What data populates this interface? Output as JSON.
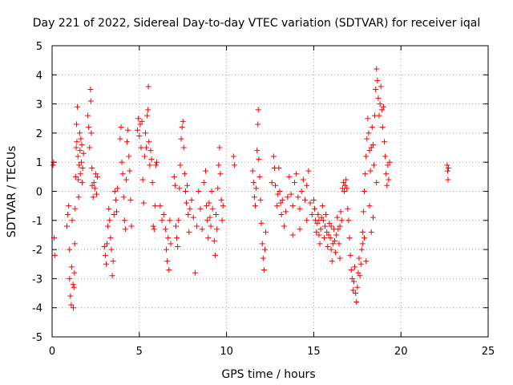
{
  "colors": {
    "series": "#ff0000",
    "grid": "#a0a0a0",
    "axis": "#000000",
    "background": "#ffffff"
  },
  "chart_data": {
    "type": "scatter",
    "title": "Day 221 of 2022, Sidereal Day-to-day VTEC variation (SDTVAR) for receiver iqal",
    "xlabel": "GPS time / hours",
    "ylabel": "SDTVAR / TECUs",
    "xlim": [
      0,
      25
    ],
    "ylim": [
      -5,
      5
    ],
    "xticks": [
      0,
      5,
      10,
      15,
      20,
      25
    ],
    "yticks": [
      -5,
      -4,
      -3,
      -2,
      -1,
      0,
      1,
      2,
      3,
      4,
      5
    ],
    "grid": true,
    "marker": "plus",
    "series": [
      {
        "name": "SDTVAR",
        "points": [
          [
            0.05,
            0.9
          ],
          [
            0.08,
            1.0
          ],
          [
            0.12,
            -1.6
          ],
          [
            0.15,
            -2.2
          ],
          [
            0.85,
            -1.2
          ],
          [
            0.9,
            -0.8
          ],
          [
            0.95,
            -0.5
          ],
          [
            1.0,
            -2.0
          ],
          [
            1.0,
            -3.0
          ],
          [
            1.05,
            -3.6
          ],
          [
            1.1,
            -3.9
          ],
          [
            1.12,
            -2.6
          ],
          [
            1.15,
            -1.0
          ],
          [
            1.2,
            -3.2
          ],
          [
            1.22,
            -4.0
          ],
          [
            1.25,
            -3.3
          ],
          [
            1.28,
            -2.8
          ],
          [
            1.3,
            -1.8
          ],
          [
            1.32,
            -0.6
          ],
          [
            1.35,
            0.5
          ],
          [
            1.38,
            1.5
          ],
          [
            1.4,
            2.3
          ],
          [
            1.42,
            1.7
          ],
          [
            1.45,
            2.9
          ],
          [
            1.48,
            1.2
          ],
          [
            1.5,
            0.4
          ],
          [
            1.52,
            -0.2
          ],
          [
            1.55,
            0.9
          ],
          [
            1.58,
            2.0
          ],
          [
            1.6,
            1.4
          ],
          [
            1.62,
            0.6
          ],
          [
            1.65,
            1.8
          ],
          [
            1.68,
            1.0
          ],
          [
            1.7,
            1.6
          ],
          [
            1.72,
            0.3
          ],
          [
            1.75,
            0.8
          ],
          [
            1.8,
            1.3
          ],
          [
            2.05,
            2.6
          ],
          [
            2.1,
            2.2
          ],
          [
            2.15,
            1.5
          ],
          [
            2.2,
            3.5
          ],
          [
            2.22,
            3.1
          ],
          [
            2.25,
            2.0
          ],
          [
            2.28,
            0.8
          ],
          [
            2.3,
            0.2
          ],
          [
            2.35,
            -0.2
          ],
          [
            2.4,
            0.3
          ],
          [
            2.45,
            0.1
          ],
          [
            2.5,
            0.6
          ],
          [
            2.55,
            -0.1
          ],
          [
            2.6,
            0.5
          ],
          [
            3.0,
            -1.9
          ],
          [
            3.05,
            -2.2
          ],
          [
            3.1,
            -2.5
          ],
          [
            3.15,
            -1.8
          ],
          [
            3.2,
            -1.2
          ],
          [
            3.25,
            -0.6
          ],
          [
            3.3,
            -1.0
          ],
          [
            3.35,
            -1.6
          ],
          [
            3.4,
            -2.0
          ],
          [
            3.45,
            -2.9
          ],
          [
            3.5,
            -2.4
          ],
          [
            3.55,
            -0.8
          ],
          [
            3.6,
            0.0
          ],
          [
            3.65,
            -0.3
          ],
          [
            3.7,
            -0.7
          ],
          [
            3.75,
            0.1
          ],
          [
            3.9,
            1.8
          ],
          [
            3.95,
            2.2
          ],
          [
            4.0,
            1.0
          ],
          [
            4.05,
            0.6
          ],
          [
            4.1,
            -0.2
          ],
          [
            4.15,
            -1.0
          ],
          [
            4.2,
            -1.3
          ],
          [
            4.25,
            0.4
          ],
          [
            4.3,
            1.7
          ],
          [
            4.35,
            2.1
          ],
          [
            4.4,
            1.2
          ],
          [
            4.45,
            0.7
          ],
          [
            4.5,
            -0.3
          ],
          [
            4.55,
            -1.2
          ],
          [
            4.9,
            2.1
          ],
          [
            4.95,
            2.5
          ],
          [
            5.0,
            1.9
          ],
          [
            5.05,
            2.3
          ],
          [
            5.1,
            1.5
          ],
          [
            5.15,
            2.4
          ],
          [
            5.2,
            0.4
          ],
          [
            5.25,
            -0.4
          ],
          [
            5.3,
            1.2
          ],
          [
            5.35,
            2.0
          ],
          [
            5.4,
            1.5
          ],
          [
            5.45,
            2.6
          ],
          [
            5.5,
            2.8
          ],
          [
            5.52,
            3.6
          ],
          [
            5.55,
            1.7
          ],
          [
            5.6,
            0.9
          ],
          [
            5.65,
            1.4
          ],
          [
            5.7,
            1.1
          ],
          [
            5.75,
            0.3
          ],
          [
            5.8,
            -1.2
          ],
          [
            5.85,
            -1.3
          ],
          [
            5.9,
            -0.5
          ],
          [
            5.95,
            0.9
          ],
          [
            6.0,
            1.0
          ],
          [
            6.2,
            -0.5
          ],
          [
            6.3,
            -1.0
          ],
          [
            6.4,
            -0.8
          ],
          [
            6.5,
            -1.3
          ],
          [
            6.55,
            -2.0
          ],
          [
            6.6,
            -2.4
          ],
          [
            6.65,
            -1.6
          ],
          [
            6.7,
            -2.7
          ],
          [
            6.75,
            -1.0
          ],
          [
            6.8,
            -1.8
          ],
          [
            7.0,
            0.5
          ],
          [
            7.05,
            0.2
          ],
          [
            7.1,
            -1.2
          ],
          [
            7.15,
            -1.6
          ],
          [
            7.2,
            -1.9
          ],
          [
            7.25,
            -1.0
          ],
          [
            7.3,
            0.1
          ],
          [
            7.35,
            0.9
          ],
          [
            7.4,
            1.8
          ],
          [
            7.45,
            2.2
          ],
          [
            7.5,
            2.4
          ],
          [
            7.55,
            1.5
          ],
          [
            7.6,
            0.6
          ],
          [
            7.65,
            0.0
          ],
          [
            7.7,
            -0.4
          ],
          [
            7.75,
            0.2
          ],
          [
            7.8,
            -0.8
          ],
          [
            7.85,
            -1.4
          ],
          [
            7.9,
            -0.6
          ],
          [
            8.0,
            -0.3
          ],
          [
            8.1,
            -0.9
          ],
          [
            8.2,
            -2.8
          ],
          [
            8.3,
            -1.2
          ],
          [
            8.4,
            0.0
          ],
          [
            8.5,
            -0.6
          ],
          [
            8.6,
            -1.3
          ],
          [
            8.7,
            0.3
          ],
          [
            8.8,
            0.7
          ],
          [
            8.85,
            -0.5
          ],
          [
            8.9,
            -1.0
          ],
          [
            8.95,
            -1.6
          ],
          [
            9.0,
            -0.4
          ],
          [
            9.05,
            -0.9
          ],
          [
            9.1,
            -1.2
          ],
          [
            9.15,
            0.0
          ],
          [
            9.2,
            -0.6
          ],
          [
            9.3,
            -1.7
          ],
          [
            9.35,
            -2.2
          ],
          [
            9.4,
            -0.8
          ],
          [
            9.45,
            -1.3
          ],
          [
            9.5,
            0.1
          ],
          [
            9.55,
            0.9
          ],
          [
            9.6,
            1.5
          ],
          [
            9.65,
            0.6
          ],
          [
            9.7,
            -0.3
          ],
          [
            9.75,
            -1.0
          ],
          [
            9.8,
            -0.5
          ],
          [
            10.4,
            1.2
          ],
          [
            10.45,
            0.9
          ],
          [
            11.5,
            0.7
          ],
          [
            11.55,
            0.3
          ],
          [
            11.6,
            -0.2
          ],
          [
            11.65,
            -0.5
          ],
          [
            11.7,
            0.1
          ],
          [
            11.75,
            1.4
          ],
          [
            11.8,
            2.3
          ],
          [
            11.82,
            2.8
          ],
          [
            11.85,
            1.1
          ],
          [
            11.9,
            0.5
          ],
          [
            11.95,
            -0.3
          ],
          [
            12.0,
            -1.1
          ],
          [
            12.05,
            -1.8
          ],
          [
            12.1,
            -2.3
          ],
          [
            12.15,
            -2.7
          ],
          [
            12.2,
            -2.0
          ],
          [
            12.25,
            -1.4
          ],
          [
            12.6,
            0.3
          ],
          [
            12.7,
            1.2
          ],
          [
            12.75,
            0.8
          ],
          [
            12.8,
            0.2
          ],
          [
            12.9,
            -0.5
          ],
          [
            12.95,
            -0.1
          ],
          [
            13.0,
            0.8
          ],
          [
            13.05,
            0.0
          ],
          [
            13.1,
            -0.4
          ],
          [
            13.15,
            -0.8
          ],
          [
            13.2,
            -0.3
          ],
          [
            13.3,
            -1.2
          ],
          [
            13.4,
            -0.7
          ],
          [
            13.5,
            -0.2
          ],
          [
            13.6,
            0.5
          ],
          [
            13.7,
            -0.1
          ],
          [
            13.8,
            -0.5
          ],
          [
            13.9,
            0.3
          ],
          [
            14.0,
            0.6
          ],
          [
            14.1,
            -0.2
          ],
          [
            14.2,
            -0.6
          ],
          [
            14.3,
            0.0
          ],
          [
            14.4,
            0.4
          ],
          [
            14.5,
            -0.3
          ],
          [
            14.6,
            0.2
          ],
          [
            14.7,
            0.7
          ],
          [
            14.8,
            -0.4
          ],
          [
            14.9,
            -0.8
          ],
          [
            15.0,
            -0.3
          ],
          [
            15.05,
            -0.6
          ],
          [
            15.1,
            -1.0
          ],
          [
            15.15,
            -1.4
          ],
          [
            15.2,
            -1.1
          ],
          [
            15.25,
            -0.8
          ],
          [
            15.3,
            -1.5
          ],
          [
            15.35,
            -1.8
          ],
          [
            15.4,
            -1.3
          ],
          [
            15.45,
            -0.9
          ],
          [
            15.5,
            -0.5
          ],
          [
            15.55,
            -1.0
          ],
          [
            15.6,
            -1.6
          ],
          [
            15.65,
            -1.2
          ],
          [
            15.7,
            -0.8
          ],
          [
            15.75,
            -1.4
          ],
          [
            15.8,
            -1.9
          ],
          [
            15.85,
            -1.5
          ],
          [
            15.9,
            -1.1
          ],
          [
            15.95,
            -1.6
          ],
          [
            16.0,
            -2.0
          ],
          [
            16.05,
            -2.4
          ],
          [
            16.1,
            -1.8
          ],
          [
            16.15,
            -1.3
          ],
          [
            16.2,
            -1.7
          ],
          [
            16.25,
            -2.1
          ],
          [
            16.3,
            -1.5
          ],
          [
            16.35,
            -0.9
          ],
          [
            16.4,
            -1.3
          ],
          [
            16.45,
            -1.8
          ],
          [
            16.5,
            -1.2
          ],
          [
            16.55,
            -0.7
          ],
          [
            16.6,
            -1.0
          ],
          [
            16.65,
            0.1
          ],
          [
            16.7,
            0.3
          ],
          [
            16.75,
            0.0
          ],
          [
            16.8,
            0.2
          ],
          [
            16.85,
            0.4
          ],
          [
            16.9,
            0.1
          ],
          [
            16.95,
            -0.6
          ],
          [
            17.0,
            -1.0
          ],
          [
            17.05,
            -1.6
          ],
          [
            17.1,
            -2.2
          ],
          [
            17.15,
            -2.7
          ],
          [
            17.2,
            -3.0
          ],
          [
            17.25,
            -3.4
          ],
          [
            17.3,
            -3.1
          ],
          [
            17.35,
            -2.6
          ],
          [
            17.4,
            -3.5
          ],
          [
            17.45,
            -3.8
          ],
          [
            17.5,
            -3.3
          ],
          [
            17.55,
            -2.8
          ],
          [
            17.6,
            -2.3
          ],
          [
            17.65,
            -2.9
          ],
          [
            17.7,
            -2.5
          ],
          [
            17.75,
            -2.0
          ],
          [
            17.8,
            -1.4
          ],
          [
            17.85,
            -0.7
          ],
          [
            17.9,
            0.0
          ],
          [
            17.95,
            0.6
          ],
          [
            18.0,
            1.2
          ],
          [
            18.05,
            1.8
          ],
          [
            18.1,
            2.5
          ],
          [
            18.15,
            2.0
          ],
          [
            18.2,
            1.4
          ],
          [
            18.25,
            0.7
          ],
          [
            18.3,
            1.5
          ],
          [
            18.35,
            2.2
          ],
          [
            18.4,
            1.6
          ],
          [
            18.45,
            0.9
          ],
          [
            18.5,
            2.6
          ],
          [
            18.55,
            3.5
          ],
          [
            18.6,
            4.2
          ],
          [
            18.65,
            3.8
          ],
          [
            18.7,
            3.2
          ],
          [
            18.75,
            2.6
          ],
          [
            18.8,
            3.0
          ],
          [
            18.85,
            3.6
          ],
          [
            18.9,
            2.8
          ],
          [
            18.95,
            2.2
          ],
          [
            19.0,
            2.9
          ],
          [
            19.05,
            1.7
          ],
          [
            19.1,
            1.2
          ],
          [
            19.15,
            0.6
          ],
          [
            19.2,
            0.2
          ],
          [
            19.25,
            0.9
          ],
          [
            19.3,
            0.4
          ],
          [
            19.35,
            1.0
          ],
          [
            13.8,
            -1.5
          ],
          [
            14.2,
            -1.3
          ],
          [
            14.6,
            -1.0
          ],
          [
            15.3,
            -1.0
          ],
          [
            16.0,
            -1.2
          ],
          [
            16.5,
            -2.3
          ],
          [
            17.8,
            -1.8
          ],
          [
            18.2,
            -0.5
          ],
          [
            18.4,
            -0.9
          ],
          [
            18.6,
            0.3
          ],
          [
            18.3,
            -1.4
          ],
          [
            18.0,
            -2.4
          ],
          [
            17.9,
            -1.6
          ],
          [
            22.65,
            0.9
          ],
          [
            22.68,
            0.7
          ],
          [
            22.7,
            0.4
          ],
          [
            22.72,
            0.8
          ]
        ]
      }
    ]
  }
}
